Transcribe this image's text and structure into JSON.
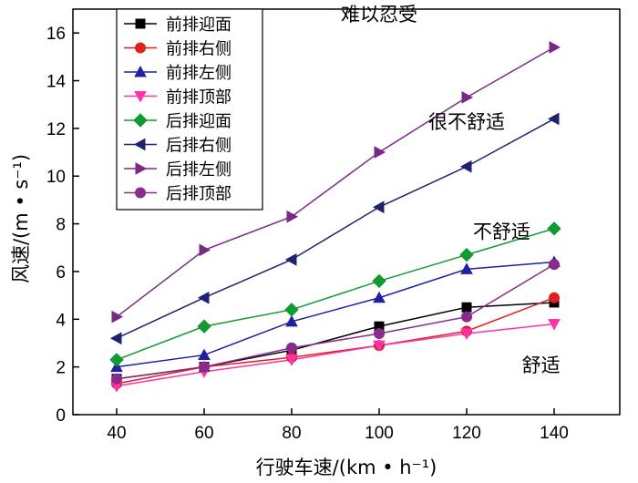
{
  "chart_data": {
    "type": "line",
    "x": [
      40,
      60,
      80,
      100,
      120,
      140
    ],
    "xlim": [
      30,
      155
    ],
    "ylim": [
      0,
      17
    ],
    "xticks": [
      "40",
      "60",
      "80",
      "100",
      "120",
      "140"
    ],
    "yticks": [
      "0",
      "2",
      "4",
      "6",
      "8",
      "10",
      "12",
      "14",
      "16"
    ],
    "xlabel": "行驶车速/(km • h⁻¹)",
    "ylabel": "风速/(m • s⁻¹)",
    "legend_position": "top-left",
    "grid": false,
    "series": [
      {
        "name": "前排迎面",
        "color": "#000000",
        "marker": "square",
        "values": [
          1.5,
          2.0,
          2.7,
          3.7,
          4.5,
          4.7
        ]
      },
      {
        "name": "前排右侧",
        "color": "#e02020",
        "marker": "circle",
        "values": [
          1.3,
          2.0,
          2.4,
          2.9,
          3.5,
          4.9
        ]
      },
      {
        "name": "前排左侧",
        "color": "#2020a0",
        "marker": "triangle-up",
        "values": [
          2.0,
          2.5,
          3.9,
          4.9,
          6.1,
          6.4
        ]
      },
      {
        "name": "前排顶部",
        "color": "#ff33aa",
        "marker": "triangle-down",
        "values": [
          1.2,
          1.8,
          2.3,
          2.9,
          3.4,
          3.8
        ]
      },
      {
        "name": "后排迎面",
        "color": "#109a30",
        "marker": "diamond",
        "values": [
          2.3,
          3.7,
          4.4,
          5.6,
          6.7,
          7.8
        ]
      },
      {
        "name": "后排右侧",
        "color": "#202070",
        "marker": "triangle-left",
        "values": [
          3.2,
          4.9,
          6.5,
          8.7,
          10.4,
          12.4
        ]
      },
      {
        "name": "后排左侧",
        "color": "#7a2888",
        "marker": "triangle-right",
        "values": [
          4.1,
          6.9,
          8.3,
          11.0,
          13.3,
          15.4
        ]
      },
      {
        "name": "后排顶部",
        "color": "#8a2a8a",
        "marker": "circle",
        "values": [
          1.5,
          2.0,
          2.8,
          3.4,
          4.1,
          6.3
        ]
      }
    ],
    "annotations": [
      {
        "text": "难以忍受",
        "x": 100,
        "y": 16.5
      },
      {
        "text": "很不舒适",
        "x": 120,
        "y": 12.0
      },
      {
        "text": "不舒适",
        "x": 128,
        "y": 7.4
      },
      {
        "text": "舒适",
        "x": 137,
        "y": 1.8
      }
    ]
  }
}
